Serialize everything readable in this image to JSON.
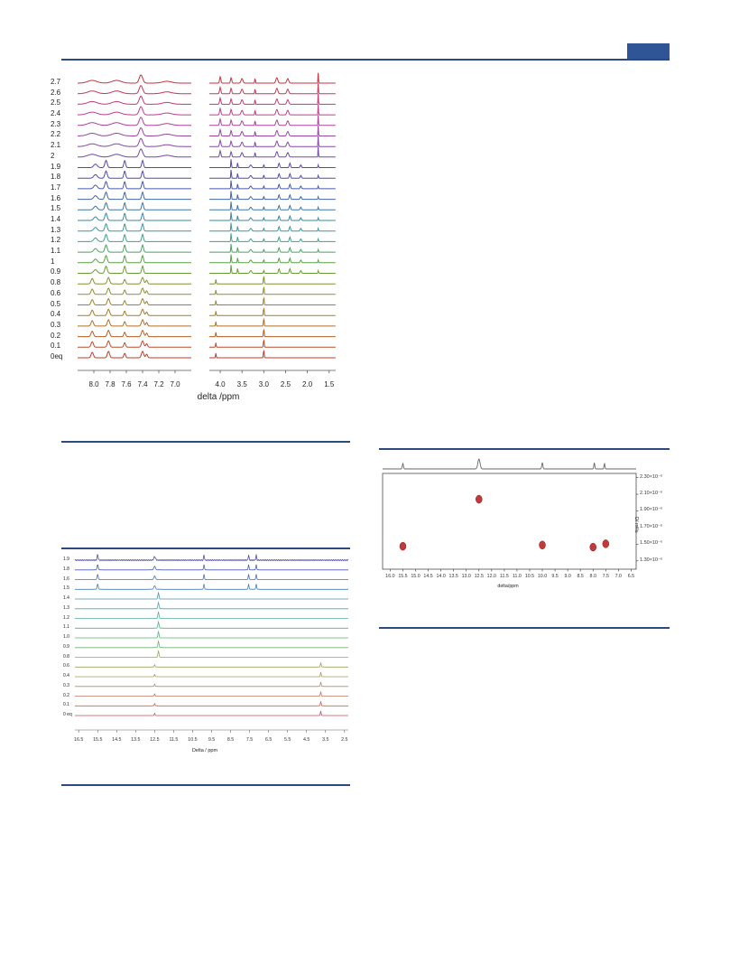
{
  "page": {
    "accent_color": "#2f5597",
    "rule_color": "#2c4a7d"
  },
  "chart_data": [
    {
      "type": "line",
      "title": "",
      "xlabel": "delta /ppm",
      "ylabel": "",
      "kind": "stacked NMR titration spectra (aromatic region)",
      "x_ticks": [
        "8.0",
        "7.8",
        "7.6",
        "7.4",
        "7.2",
        "7.0"
      ],
      "xlim": [
        8.2,
        6.8
      ],
      "series_labels": [
        "0eq",
        "0.1",
        "0.2",
        "0.3",
        "0.4",
        "0.5",
        "0.6",
        "0.8",
        "0.9",
        "1",
        "1.1",
        "1.2",
        "1.3",
        "1.4",
        "1.5",
        "1.6",
        "1.7",
        "1.8",
        "1.9",
        "2",
        "2.1",
        "2.2",
        "2.3",
        "2.4",
        "2.5",
        "2.6",
        "2.7"
      ]
    },
    {
      "type": "line",
      "title": "",
      "xlabel": "delta /ppm",
      "ylabel": "",
      "kind": "stacked NMR titration spectra (aliphatic region)",
      "x_ticks": [
        "4.0",
        "3.5",
        "3.0",
        "2.5",
        "2.0",
        "1.5"
      ],
      "xlim": [
        4.25,
        1.35
      ]
    },
    {
      "type": "line",
      "title": "",
      "xlabel": "Delta / ppm",
      "ylabel": "",
      "kind": "stacked NMR titration spectra (full range)",
      "x_ticks": [
        "16.5",
        "15.5",
        "14.5",
        "13.5",
        "12.5",
        "11.5",
        "10.5",
        "9.5",
        "8.5",
        "7.5",
        "6.5",
        "5.5",
        "4.5",
        "3.5",
        "2.5"
      ],
      "xlim": [
        16.7,
        2.3
      ],
      "series_labels": [
        "0 eq",
        "0.1",
        "0.2",
        "0.3",
        "0.4",
        "0.6",
        "0.8",
        "0.9",
        "1.0",
        "1.1",
        "1.2",
        "1.3",
        "1.4",
        "1.5",
        "1.6",
        "1.8",
        "1.9"
      ]
    },
    {
      "type": "scatter",
      "title": "",
      "xlabel": "delta/ppm",
      "ylabel": "D/ m²/s",
      "kind": "DOSY plot",
      "x_ticks": [
        "16.0",
        "15.5",
        "15.0",
        "14.5",
        "14.0",
        "13.5",
        "13.0",
        "12.5",
        "12.0",
        "11.5",
        "11.0",
        "10.5",
        "10.0",
        "9.5",
        "9.0",
        "8.5",
        "8.0",
        "7.5",
        "7.0",
        "6.5"
      ],
      "y_ticks": [
        "2.30×10⁻⁶",
        "2.10×10⁻⁶",
        "1.90×10⁻⁶",
        "1.70×10⁻⁶",
        "1.50×10⁻⁶",
        "1.30×10⁻⁶"
      ],
      "xlim": [
        16.3,
        6.3
      ],
      "ylim": [
        1.2e-06,
        2.35e-06
      ],
      "points": [
        {
          "x": 15.5,
          "y": 1.475e-06
        },
        {
          "x": 12.5,
          "y": 2.04e-06
        },
        {
          "x": 10.0,
          "y": 1.49e-06
        },
        {
          "x": 8.0,
          "y": 1.465e-06
        },
        {
          "x": 7.5,
          "y": 1.505e-06
        }
      ],
      "point_color": "#c0393b"
    }
  ]
}
